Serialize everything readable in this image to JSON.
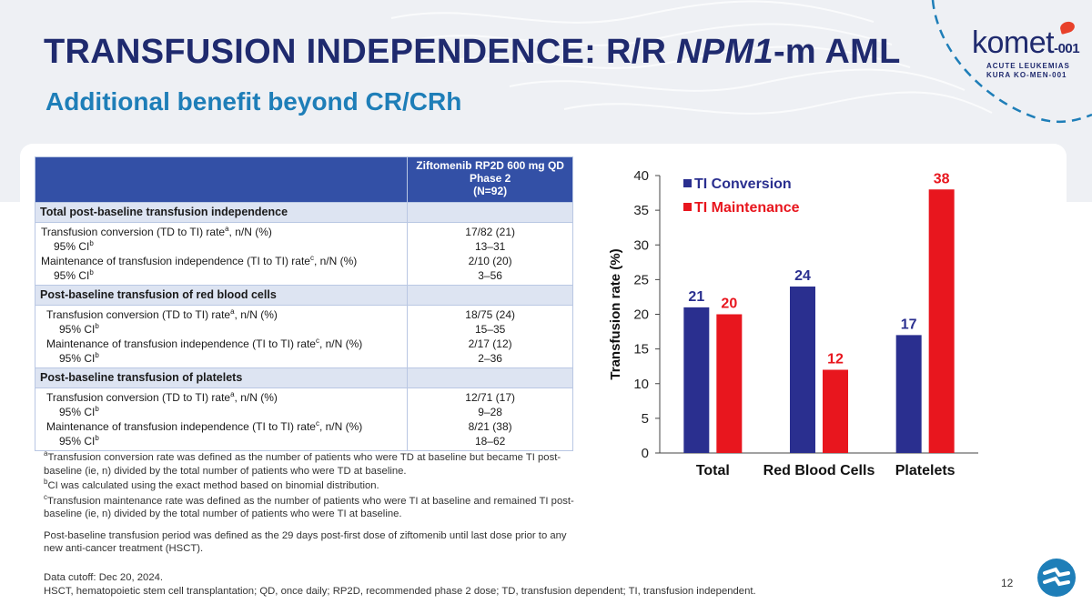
{
  "header": {
    "title_part1": "TRANSFUSION INDEPENDENCE: R/R ",
    "title_italic": "NPM1",
    "title_part2": "-m AML",
    "subtitle": "Additional benefit beyond CR/CRh"
  },
  "logo": {
    "word": "komet",
    "number": "-001",
    "line1": "ACUTE LEUKEMIAS",
    "line2": "KURA KO-MEN-001"
  },
  "table": {
    "header": {
      "line1": "Ziftomenib RP2D 600 mg QD",
      "line2": "Phase 2",
      "line3": "(N=92)"
    },
    "sections": [
      {
        "title": "Total post-baseline transfusion independence",
        "rows": [
          {
            "label": "Transfusion conversion (TD to TI) rate",
            "sup": "a",
            "suffix": ", n/N (%)",
            "value": "17/82 (21)"
          },
          {
            "label": "95% CI",
            "sup": "b",
            "suffix": "",
            "value": "13–31"
          },
          {
            "label": "Maintenance of transfusion independence (TI to TI) rate",
            "sup": "c",
            "suffix": ", n/N (%)",
            "value": "2/10 (20)"
          },
          {
            "label": "95% CI",
            "sup": "b",
            "suffix": "",
            "value": "3–56"
          }
        ]
      },
      {
        "title": "Post-baseline transfusion of red blood cells",
        "rows": [
          {
            "label": "Transfusion conversion (TD to TI) rate",
            "sup": "a",
            "suffix": ", n/N (%)",
            "value": "18/75 (24)"
          },
          {
            "label": "95% CI",
            "sup": "b",
            "suffix": "",
            "value": "15–35"
          },
          {
            "label": "Maintenance of transfusion independence (TI to TI) rate",
            "sup": "c",
            "suffix": ", n/N (%)",
            "value": "2/17 (12)"
          },
          {
            "label": "95% CI",
            "sup": "b",
            "suffix": "",
            "value": "2–36"
          }
        ]
      },
      {
        "title": "Post-baseline transfusion of platelets",
        "rows": [
          {
            "label": "Transfusion conversion (TD to TI) rate",
            "sup": "a",
            "suffix": ", n/N (%)",
            "value": "12/71 (17)"
          },
          {
            "label": "95% CI",
            "sup": "b",
            "suffix": "",
            "value": "9–28"
          },
          {
            "label": "Maintenance of transfusion independence (TI to TI) rate",
            "sup": "c",
            "suffix": ", n/N (%)",
            "value": "8/21 (38)"
          },
          {
            "label": "95% CI",
            "sup": "b",
            "suffix": "",
            "value": "18–62"
          }
        ]
      }
    ]
  },
  "footnotes": {
    "a_sup": "a",
    "a_text": "Transfusion conversion rate was defined as the number of patients who were TD at baseline but became TI post-baseline (ie, n) divided by the total number of patients who were TD at baseline.",
    "b_sup": "b",
    "b_text": "CI was calculated using the exact method based on binomial distribution.",
    "c_sup": "c",
    "c_text": "Transfusion maintenance rate was defined as the number of patients who were TI at baseline and remained TI post-baseline (ie, n) divided by the total number of patients who were TI at baseline.",
    "period": "Post-baseline transfusion period was defined as the 29 days post-first dose of ziftomenib until last dose prior to any new anti-cancer treatment (HSCT).",
    "cutoff": "Data cutoff: Dec 20, 2024.",
    "abbrev": "HSCT, hematopoietic stem cell transplantation; QD, once daily; RP2D, recommended phase 2 dose; TD, transfusion dependent; TI, transfusion independent."
  },
  "page_number": "12",
  "colors": {
    "navy": "#1f2a6e",
    "accent_blue": "#1e7eb8",
    "series_conversion": "#2a2f8f",
    "series_maintenance": "#e8161e"
  },
  "chart_data": {
    "type": "bar",
    "categories": [
      "Total",
      "Red Blood Cells",
      "Platelets"
    ],
    "series": [
      {
        "name": "TI Conversion",
        "values": [
          21,
          24,
          17
        ]
      },
      {
        "name": "TI Maintenance",
        "values": [
          20,
          12,
          38
        ]
      }
    ],
    "ylabel": "Transfusion rate (%)",
    "xlabel": "",
    "ylim": [
      0,
      40
    ],
    "yticks": [
      0,
      5,
      10,
      15,
      20,
      25,
      30,
      35,
      40
    ],
    "legend_position": "top-left",
    "grid": false
  }
}
